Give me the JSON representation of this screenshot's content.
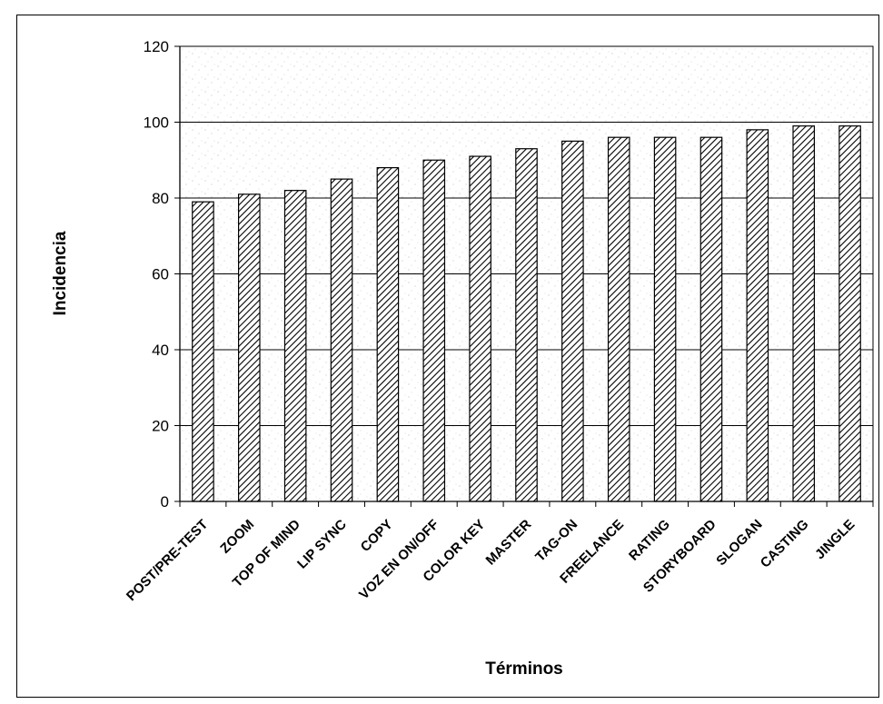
{
  "chart_data": {
    "type": "bar",
    "title": "",
    "xlabel": "Términos",
    "ylabel": "Incidencia",
    "ylim": [
      0,
      120
    ],
    "yticks": [
      0,
      20,
      40,
      60,
      80,
      100,
      120
    ],
    "grid": true,
    "categories": [
      "POST/PRE-TEST",
      "ZOOM",
      "TOP OF MIND",
      "LIP SYNC",
      "COPY",
      "VOZ EN ON/OFF",
      "COLOR KEY",
      "MASTER",
      "TAG-ON",
      "FREELANCE",
      "RATING",
      "STORYBOARD",
      "SLOGAN",
      "CASTING",
      "JINGLE"
    ],
    "values": [
      79,
      81,
      82,
      85,
      88,
      90,
      91,
      93,
      95,
      96,
      96,
      96,
      98,
      99,
      99
    ]
  }
}
